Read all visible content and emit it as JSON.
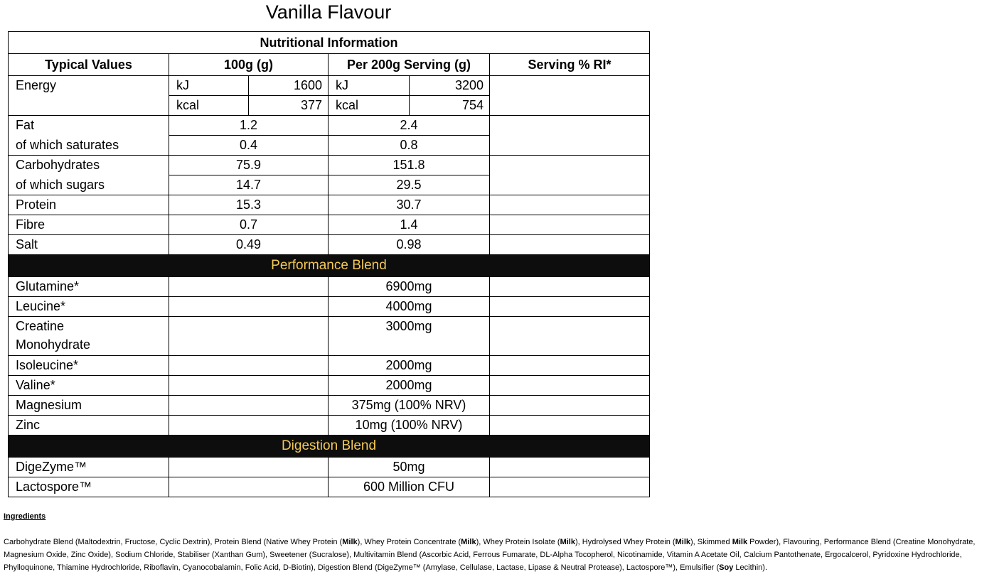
{
  "title": "Vanilla Flavour",
  "table": {
    "caption": "Nutritional Information",
    "headers": [
      "Typical Values",
      "100g (g)",
      "Per 200g Serving (g)",
      "Serving % RI*"
    ],
    "energy": {
      "label": "Energy",
      "kj_unit": "kJ",
      "kcal_unit": "kcal",
      "kj_100": "1600",
      "kcal_100": "377",
      "kj_serving": "3200",
      "kcal_serving": "754"
    },
    "nutrients": [
      {
        "label": "Fat",
        "per100": "1.2",
        "serving": "2.4"
      },
      {
        "label": "of which saturates",
        "per100": "0.4",
        "serving": "0.8"
      },
      {
        "label": "Carbohydrates",
        "per100": "75.9",
        "serving": "151.8"
      },
      {
        "label": "of which sugars",
        "per100": "14.7",
        "serving": "29.5"
      },
      {
        "label": "Protein",
        "per100": "15.3",
        "serving": "30.7"
      },
      {
        "label": "Fibre",
        "per100": "0.7",
        "serving": "1.4"
      },
      {
        "label": "Salt",
        "per100": "0.49",
        "serving": "0.98"
      }
    ],
    "performance_blend": {
      "heading": "Performance Blend",
      "items": [
        {
          "label": "Glutamine*",
          "serving": "6900mg"
        },
        {
          "label": "Leucine*",
          "serving": "4000mg"
        },
        {
          "label": "Creatine",
          "label2": "Monohydrate",
          "serving": "3000mg"
        },
        {
          "label": "Isoleucine*",
          "serving": "2000mg"
        },
        {
          "label": "Valine*",
          "serving": "2000mg"
        },
        {
          "label": "Magnesium",
          "serving": "375mg (100% NRV)"
        },
        {
          "label": "Zinc",
          "serving": "10mg (100% NRV)"
        }
      ]
    },
    "digestion_blend": {
      "heading": "Digestion Blend",
      "items": [
        {
          "label": "DigeZyme™",
          "serving": "50mg"
        },
        {
          "label": "Lactospore™",
          "serving": "600 Million CFU"
        }
      ]
    },
    "band_bg": "#0d0d0d",
    "band_text": "#f4c955"
  },
  "ingredients": {
    "heading": "Ingredients",
    "segments": [
      {
        "text": "Carbohydrate Blend (Maltodextrin, Fructose, Cyclic Dextrin), Protein Blend (Native Whey Protein (",
        "bold": false
      },
      {
        "text": "Milk",
        "bold": true
      },
      {
        "text": "), Whey Protein Concentrate (",
        "bold": false
      },
      {
        "text": "Milk",
        "bold": true
      },
      {
        "text": "), Whey Protein Isolate (",
        "bold": false
      },
      {
        "text": "Milk",
        "bold": true
      },
      {
        "text": "), Hydrolysed Whey Protein (",
        "bold": false
      },
      {
        "text": "Milk",
        "bold": true
      },
      {
        "text": "), Skimmed ",
        "bold": false
      },
      {
        "text": "Milk",
        "bold": true
      },
      {
        "text": " Powder), Flavouring, Performance Blend (Creatine Monohydrate, Magnesium Oxide, Zinc Oxide), Sodium Chloride, Stabiliser (Xanthan Gum), Sweetener (Sucralose), Multivitamin Blend (Ascorbic Acid, Ferrous Fumarate, DL-Alpha Tocopherol, Nicotinamide, Vitamin A Acetate Oil, Calcium Pantothenate, Ergocalcerol, Pyridoxine Hydrochloride, Phylloquinone, Thiamine Hydrochloride, Riboflavin, Cyanocobalamin, Folic Acid, D-Biotin), Digestion Blend (DigeZyme™ (Amylase, Cellulase, Lactase, Lipase & Neutral Protease), Lactospore™), Emulsifier (",
        "bold": false
      },
      {
        "text": "Soy",
        "bold": true
      },
      {
        "text": " Lecithin).",
        "bold": false
      }
    ]
  }
}
